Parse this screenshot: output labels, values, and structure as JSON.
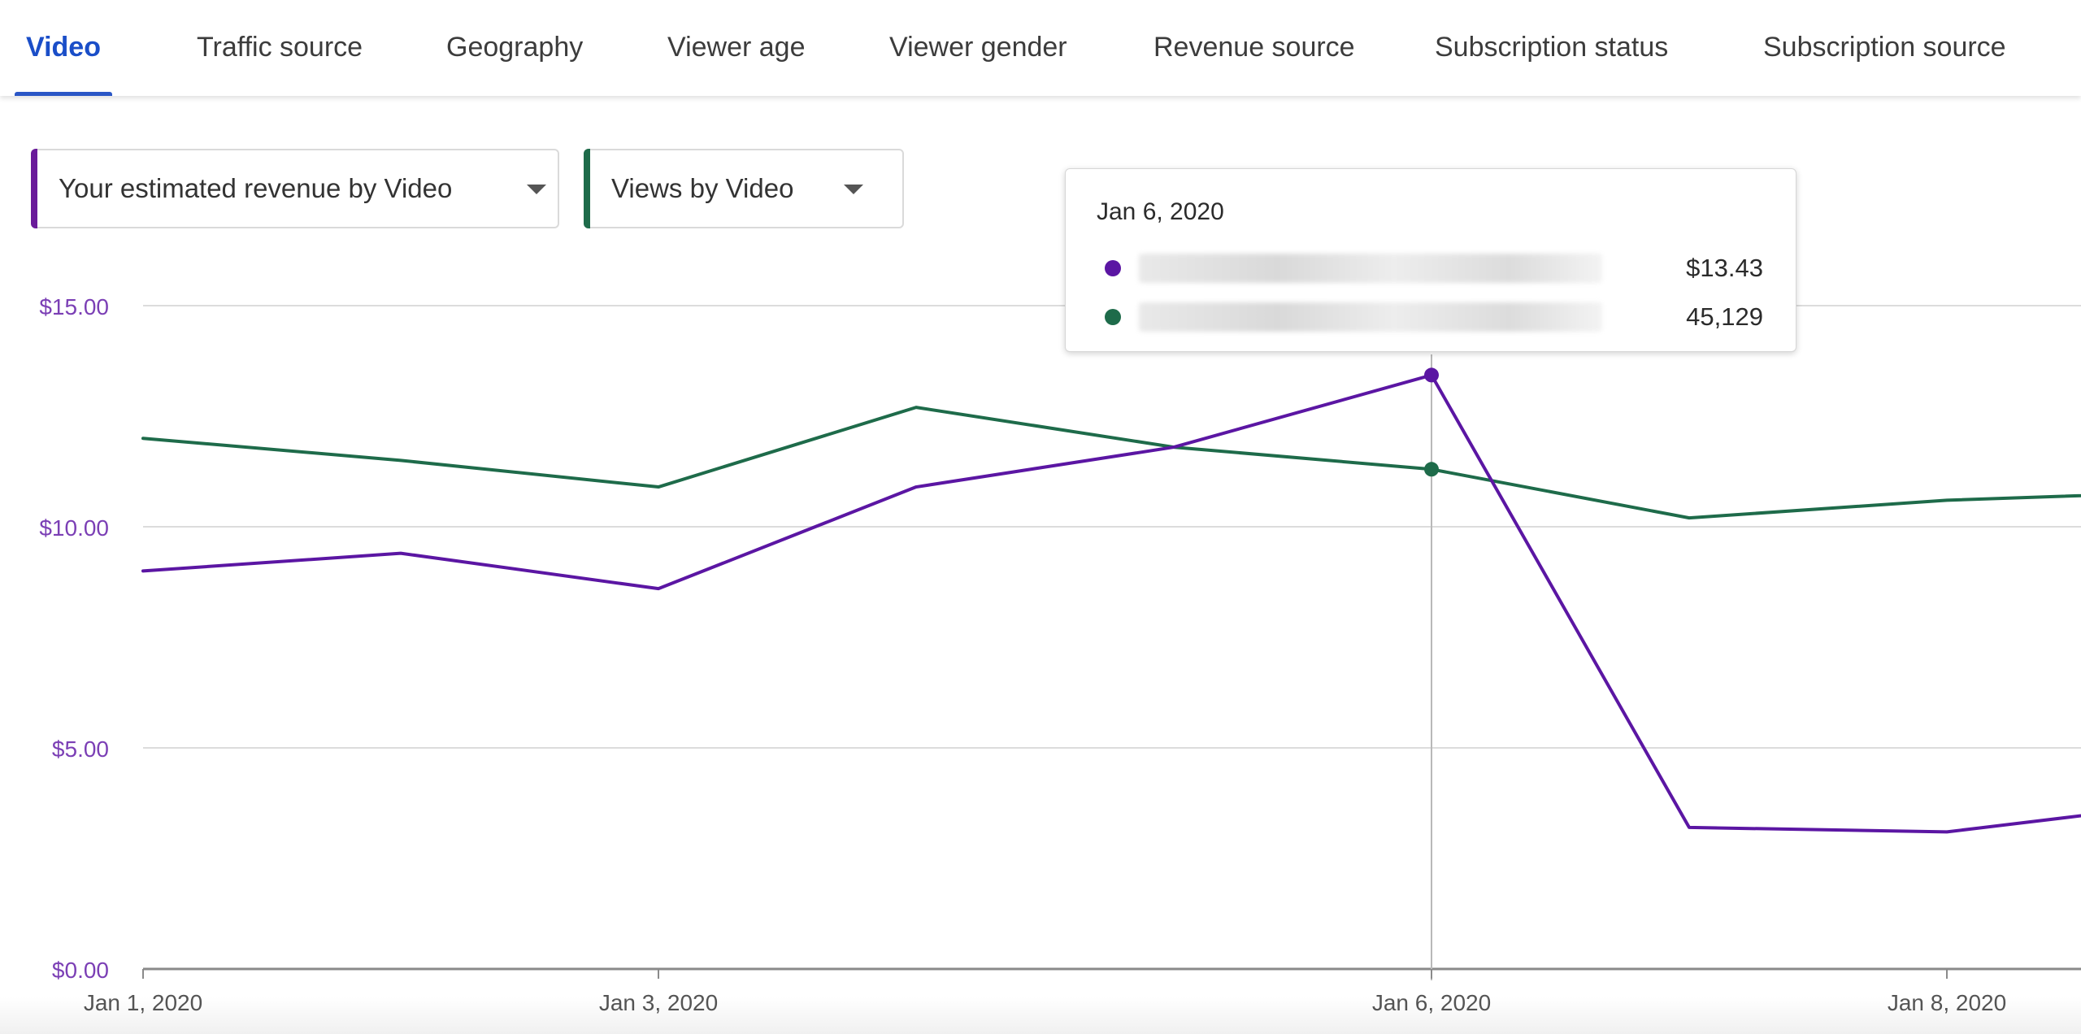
{
  "tabs": [
    {
      "label": "Video",
      "active": true
    },
    {
      "label": "Traffic source",
      "active": false
    },
    {
      "label": "Geography",
      "active": false
    },
    {
      "label": "Viewer age",
      "active": false
    },
    {
      "label": "Viewer gender",
      "active": false
    },
    {
      "label": "Revenue source",
      "active": false
    },
    {
      "label": "Subscription status",
      "active": false
    },
    {
      "label": "Subscription source",
      "active": false
    }
  ],
  "selectors": [
    {
      "label": "Your estimated revenue by Video",
      "accent_color": "#6a1b9a"
    },
    {
      "label": "Views by Video",
      "accent_color": "#1e6b4a"
    }
  ],
  "tooltip": {
    "date": "Jan 6, 2020",
    "rows": [
      {
        "value": "$13.43",
        "color": "#5b16a3"
      },
      {
        "value": "45,129",
        "color": "#1e6b4a"
      }
    ]
  },
  "chart_data": {
    "type": "line",
    "x": [
      "2020-01-01",
      "2020-01-02",
      "2020-01-03",
      "2020-01-04",
      "2020-01-05",
      "2020-01-06",
      "2020-01-07",
      "2020-01-08",
      "2020-01-09"
    ],
    "x_tick_labels": [
      {
        "x": "2020-01-01",
        "label": "Jan 1, 2020"
      },
      {
        "x": "2020-01-03",
        "label": "Jan 3, 2020"
      },
      {
        "x": "2020-01-06",
        "label": "Jan 6, 2020"
      },
      {
        "x": "2020-01-08",
        "label": "Jan 8, 2020"
      }
    ],
    "y_ticks": [
      {
        "value": 0,
        "label": "$0.00"
      },
      {
        "value": 5,
        "label": "$5.00"
      },
      {
        "value": 10,
        "label": "$10.00"
      },
      {
        "value": 15,
        "label": "$15.00"
      }
    ],
    "ylim": [
      0,
      15
    ],
    "y_axis_color": "#7b3fb5",
    "grid": true,
    "series": [
      {
        "metric": "revenue",
        "color": "#5b16a3",
        "values": [
          9.0,
          9.4,
          8.6,
          10.9,
          11.8,
          13.43,
          3.2,
          3.1,
          3.8
        ]
      },
      {
        "metric": "views",
        "color": "#1e6b4a",
        "values": [
          12.0,
          11.5,
          10.9,
          12.7,
          11.8,
          11.3,
          10.2,
          10.6,
          10.8
        ]
      }
    ],
    "highlight_x": "2020-01-06"
  }
}
